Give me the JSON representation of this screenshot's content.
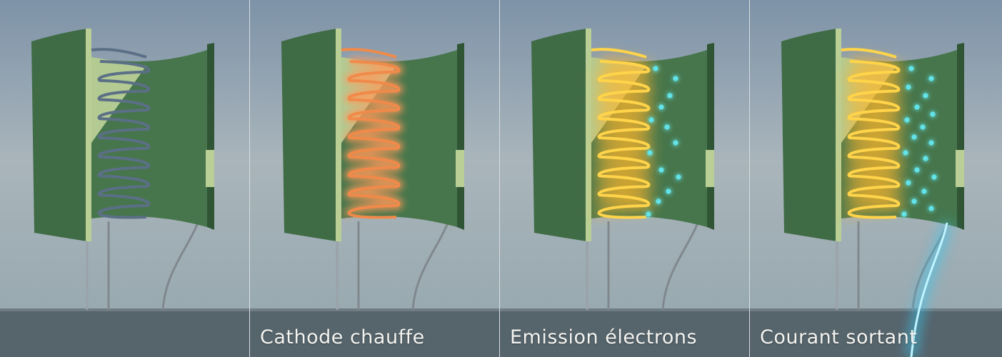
{
  "panels": [
    {
      "caption": "",
      "state": "cold"
    },
    {
      "caption": "Cathode chauffe",
      "state": "warm"
    },
    {
      "caption": "Emission électrons",
      "state": "hot"
    },
    {
      "caption": "Courant sortant",
      "state": "current"
    }
  ],
  "colors": {
    "sky_top": "#7e93a8",
    "sky_mid": "#a9b5bb",
    "floor": "#56646c",
    "anode_green": "#3f6b45",
    "anode_edge": "#b9cf96",
    "coil_cold": "#5b6f86",
    "coil_warm": "#f08a4a",
    "coil_hot": "#ffd44a",
    "electron": "#62e3e8",
    "current": "#37c9f2"
  }
}
